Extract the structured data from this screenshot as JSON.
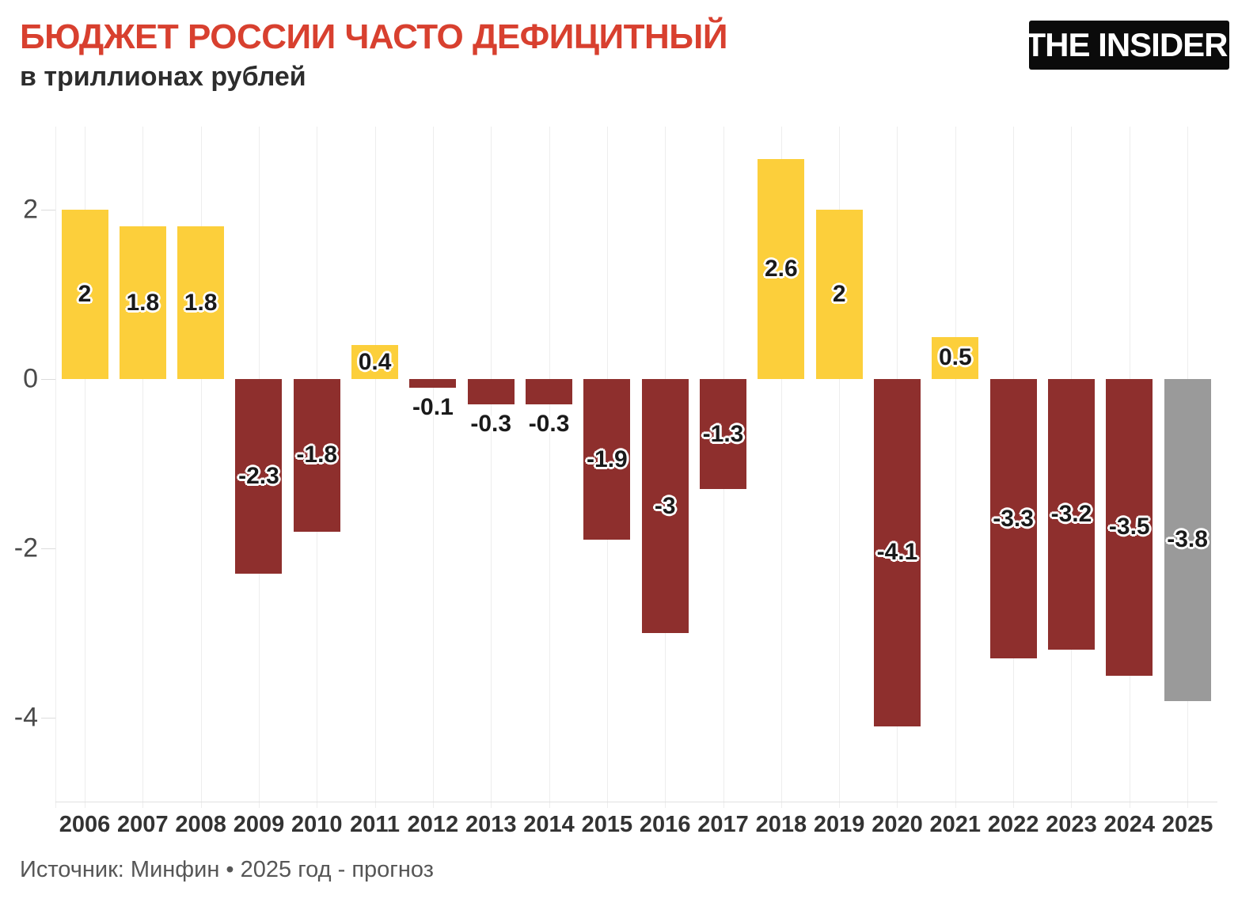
{
  "header": {
    "title": "БЮДЖЕТ РОССИИ ЧАСТО ДЕФИЦИТНЫЙ",
    "subtitle": "в триллионах рублей",
    "logo_text": "THE INSIDER"
  },
  "footer": {
    "source": "Источник: Минфин • 2025 год - прогноз"
  },
  "colors": {
    "title": "#d8402f",
    "surplus": "#fccf3b",
    "deficit": "#8e2f2d",
    "forecast": "#9a9a9a",
    "value_label": "#1a1a1a",
    "gridline": "#ededed",
    "axis_line": "#e0e0e0",
    "y_tick_label": "#4a4a4a",
    "x_tick_label": "#333333"
  },
  "chart_data": {
    "type": "bar",
    "title": "БЮДЖЕТ РОССИИ ЧАСТО ДЕФИЦИТНЫЙ",
    "subtitle": "в триллионах рублей",
    "xlabel": "",
    "ylabel": "триллионы рублей",
    "categories": [
      "2006",
      "2007",
      "2008",
      "2009",
      "2010",
      "2011",
      "2012",
      "2013",
      "2014",
      "2015",
      "2016",
      "2017",
      "2018",
      "2019",
      "2020",
      "2021",
      "2022",
      "2023",
      "2024",
      "2025"
    ],
    "values": [
      2,
      1.8,
      1.8,
      -2.3,
      -1.8,
      0.4,
      -0.1,
      -0.3,
      -0.3,
      -1.9,
      -3,
      -1.3,
      2.6,
      2,
      -4.1,
      0.5,
      -3.3,
      -3.2,
      -3.5,
      -3.8
    ],
    "value_labels": [
      "2",
      "1.8",
      "1.8",
      "-2.3",
      "-1.8",
      "0.4",
      "-0.1",
      "-0.3",
      "-0.3",
      "-1.9",
      "-3",
      "-1.3",
      "2.6",
      "2",
      "-4.1",
      "0.5",
      "-3.3",
      "-3.2",
      "-3.5",
      "-3.8"
    ],
    "bar_color_keys": [
      "surplus",
      "surplus",
      "surplus",
      "deficit",
      "deficit",
      "surplus",
      "deficit",
      "deficit",
      "deficit",
      "deficit",
      "deficit",
      "deficit",
      "surplus",
      "surplus",
      "deficit",
      "surplus",
      "deficit",
      "deficit",
      "deficit",
      "forecast"
    ],
    "label_placement": [
      "inside",
      "inside",
      "inside",
      "inside",
      "inside",
      "inside",
      "below",
      "below",
      "below",
      "inside",
      "inside",
      "inside",
      "inside",
      "inside",
      "inside",
      "inside",
      "inside",
      "inside",
      "inside",
      "inside"
    ],
    "y_ticks": [
      {
        "value": 2,
        "label": "2"
      },
      {
        "value": 0,
        "label": "0"
      },
      {
        "value": -2,
        "label": "-2"
      },
      {
        "value": -4,
        "label": "-4"
      }
    ],
    "ylim": [
      -5,
      3
    ],
    "grid": "vertical-only",
    "legend": "none",
    "note": "2025 — прогноз (серый столбец)"
  }
}
